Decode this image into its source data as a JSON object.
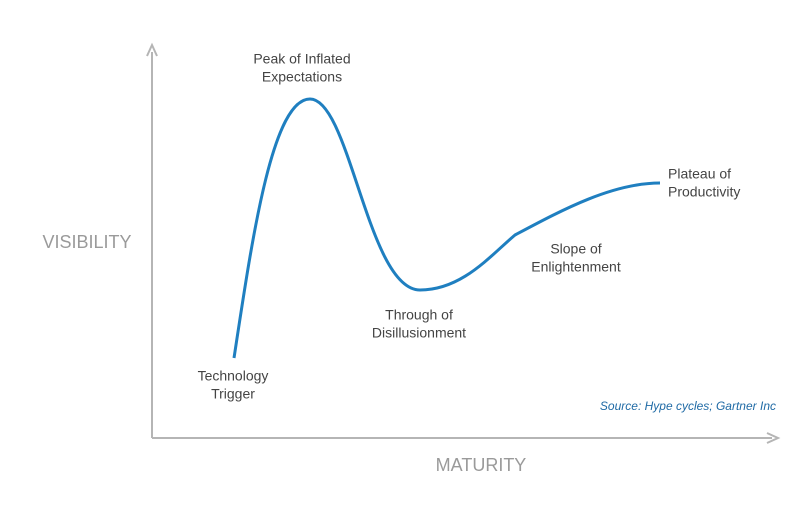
{
  "axes": {
    "y_label": "VISIBILITY",
    "x_label": "MATURITY"
  },
  "phases": [
    {
      "lines": [
        "Technology",
        "Trigger"
      ]
    },
    {
      "lines": [
        "Peak of Inflated",
        "Expectations"
      ]
    },
    {
      "lines": [
        "Through of",
        "Disillusionment"
      ]
    },
    {
      "lines": [
        "Slope of",
        "Enlightenment"
      ]
    },
    {
      "lines": [
        "Plateau of",
        "Productivity"
      ]
    }
  ],
  "source": "Source: Hype cycles; Gartner Inc"
}
